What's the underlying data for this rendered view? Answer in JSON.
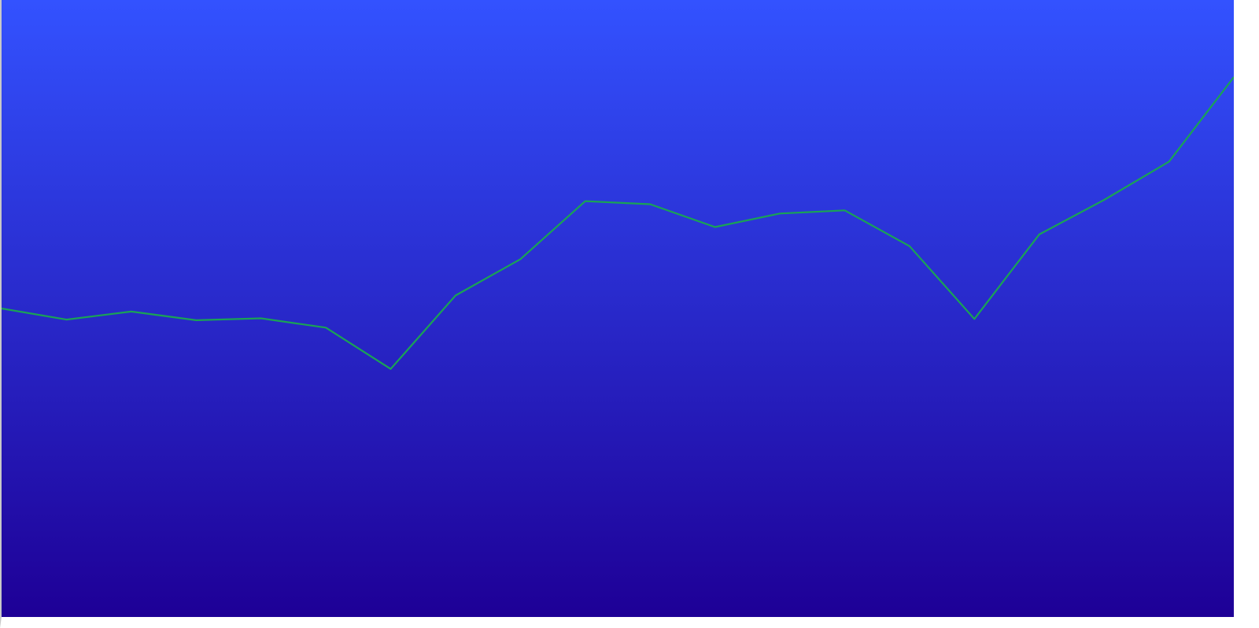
{
  "colors": {
    "background_top": "#3352ff",
    "background_bottom": "#1e0096",
    "line": "#1aa355"
  },
  "chart_data": {
    "type": "line",
    "title": "",
    "xlabel": "",
    "ylabel": "",
    "grid": false,
    "legend": "none",
    "x": [
      0,
      1,
      2,
      3,
      4,
      5,
      6,
      7,
      8,
      9,
      10,
      11,
      12,
      13,
      14,
      15,
      16,
      17,
      18,
      19
    ],
    "series": [
      {
        "values": [
          50.0,
          48.2,
          49.5,
          48.1,
          48.4,
          46.9,
          40.2,
          52.1,
          58.0,
          67.4,
          66.9,
          63.2,
          65.4,
          65.9,
          60.1,
          48.3,
          62.0,
          67.6,
          73.8,
          87.5
        ]
      }
    ],
    "ylim": [
      0,
      100
    ]
  }
}
